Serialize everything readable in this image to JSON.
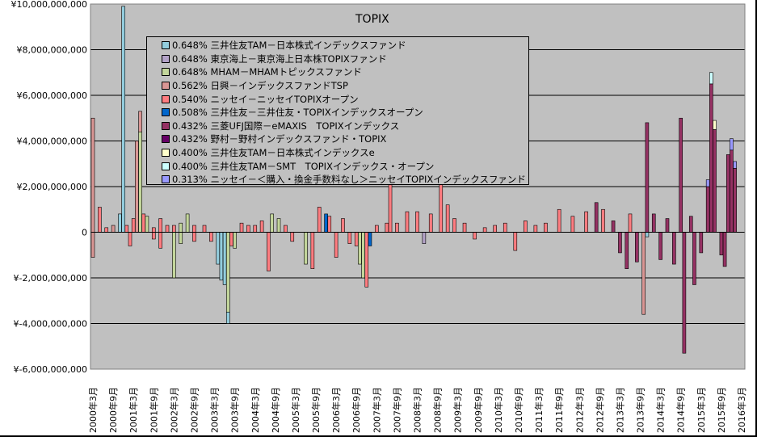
{
  "chart_data": {
    "type": "bar",
    "stacked": true,
    "title": "TOPIX",
    "xlabel": "",
    "ylabel": "",
    "ylim": [
      -6000000000,
      10000000000
    ],
    "yticks": [
      10000000000,
      8000000000,
      6000000000,
      4000000000,
      2000000000,
      0,
      -2000000000,
      -4000000000,
      -6000000000
    ],
    "ytick_labels": [
      "¥10,000,000,000",
      "¥8,000,000,000",
      "¥6,000,000,000",
      "¥4,000,000,000",
      "¥2,000,000,000",
      "0",
      "¥-2,000,000,000",
      "¥-4,000,000,000",
      "¥-6,000,000,000"
    ],
    "x_start": "2000-03",
    "x_end": "2016-03",
    "xtick_labels": [
      "2000年3月",
      "2000年9月",
      "2001年3月",
      "2001年9月",
      "2002年3月",
      "2002年9月",
      "2003年3月",
      "2003年9月",
      "2004年3月",
      "2004年9月",
      "2005年3月",
      "2005年9月",
      "2006年3月",
      "2006年9月",
      "2007年3月",
      "2007年9月",
      "2008年3月",
      "2008年9月",
      "2009年3月",
      "2009年9月",
      "2010年3月",
      "2010年9月",
      "2011年3月",
      "2011年9月",
      "2012年3月",
      "2012年9月",
      "2013年3月",
      "2013年9月",
      "2014年3月",
      "2014年9月",
      "2015年3月",
      "2015年9月",
      "2016年3月"
    ],
    "grid": true,
    "legend_position": "top-left",
    "value_unit": "billion yen (approx.)",
    "series": [
      {
        "name": "0.648% 三井住友TAM－日本株式インデックスファンド",
        "color": "#93cddd"
      },
      {
        "name": "0.648% 東京海上－東京海上日本株TOPIXファンド",
        "color": "#b3a2c7"
      },
      {
        "name": "0.648% MHAM－MHAMトピックスファンド",
        "color": "#c3d69b"
      },
      {
        "name": "0.562% 日興－インデックスファンドTSP",
        "color": "#d99694"
      },
      {
        "name": "0.540% ニッセイ－ニッセイTOPIXオープン",
        "color": "#ff7c80"
      },
      {
        "name": "0.508% 三井住友－三井住友・TOPIXインデックスオープン",
        "color": "#0066cc"
      },
      {
        "name": "0.432% 三菱UFJ国際－eMAXIS　TOPIXインデックス",
        "color": "#953163"
      },
      {
        "name": "0.432% 野村－野村インデックスファンド・TOPIX",
        "color": "#660066"
      },
      {
        "name": "0.400% 三井住友TAM－日本株式インデックスe",
        "color": "#ffffcc"
      },
      {
        "name": "0.400% 三井住友TAM－SMT　TOPIXインデックス・オープン",
        "color": "#ccffff"
      },
      {
        "name": "0.313% ニッセイ－＜購入・換金手数料なし＞ニッセイTOPIXインデックスファンド",
        "color": "#9999ff"
      }
    ],
    "bars": [
      [
        "2000-03",
        3,
        5.0
      ],
      [
        "2000-03",
        3,
        -1.1
      ],
      [
        "2000-05",
        4,
        1.1
      ],
      [
        "2000-07",
        4,
        0.2
      ],
      [
        "2000-09",
        3,
        0.3
      ],
      [
        "2000-11",
        0,
        0.8
      ],
      [
        "2000-12",
        0,
        9.9
      ],
      [
        "2001-01",
        4,
        0.3
      ],
      [
        "2001-02",
        4,
        -0.6
      ],
      [
        "2001-03",
        4,
        0.6
      ],
      [
        "2001-04",
        3,
        4.0
      ],
      [
        "2001-05",
        2,
        4.4
      ],
      [
        "2001-05",
        3,
        0.9
      ],
      [
        "2001-06",
        4,
        0.8
      ],
      [
        "2001-07",
        2,
        0.7
      ],
      [
        "2001-09",
        4,
        0.2
      ],
      [
        "2001-09",
        4,
        -0.3
      ],
      [
        "2001-11",
        4,
        0.6
      ],
      [
        "2001-11",
        4,
        -0.7
      ],
      [
        "2002-01",
        4,
        0.3
      ],
      [
        "2002-03",
        2,
        -2.0
      ],
      [
        "2002-03",
        4,
        0.3
      ],
      [
        "2002-05",
        2,
        0.4
      ],
      [
        "2002-05",
        2,
        -0.5
      ],
      [
        "2002-07",
        2,
        0.8
      ],
      [
        "2002-09",
        4,
        0.3
      ],
      [
        "2002-09",
        4,
        -0.4
      ],
      [
        "2002-12",
        4,
        0.3
      ],
      [
        "2003-02",
        4,
        -0.4
      ],
      [
        "2003-04",
        0,
        -1.4
      ],
      [
        "2003-05",
        0,
        -2.1
      ],
      [
        "2003-06",
        0,
        -2.3
      ],
      [
        "2003-07",
        2,
        -3.5
      ],
      [
        "2003-07",
        0,
        -0.5
      ],
      [
        "2003-08",
        4,
        -0.6
      ],
      [
        "2003-09",
        2,
        -0.7
      ],
      [
        "2003-11",
        4,
        0.4
      ],
      [
        "2004-01",
        4,
        0.3
      ],
      [
        "2004-03",
        4,
        0.3
      ],
      [
        "2004-05",
        4,
        0.5
      ],
      [
        "2004-07",
        4,
        -1.7
      ],
      [
        "2004-08",
        2,
        0.8
      ],
      [
        "2004-10",
        2,
        0.6
      ],
      [
        "2004-12",
        4,
        0.3
      ],
      [
        "2005-02",
        4,
        -0.4
      ],
      [
        "2005-06",
        2,
        -1.4
      ],
      [
        "2005-08",
        4,
        -1.6
      ],
      [
        "2005-10",
        4,
        1.1
      ],
      [
        "2005-12",
        5,
        0.8
      ],
      [
        "2006-01",
        4,
        0.7
      ],
      [
        "2006-03",
        4,
        -1.1
      ],
      [
        "2006-05",
        4,
        0.6
      ],
      [
        "2006-07",
        4,
        -0.5
      ],
      [
        "2006-09",
        4,
        -0.6
      ],
      [
        "2006-10",
        2,
        -1.4
      ],
      [
        "2006-11",
        2,
        -2.0
      ],
      [
        "2006-12",
        4,
        -2.4
      ],
      [
        "2007-01",
        5,
        -0.6
      ],
      [
        "2007-03",
        4,
        0.3
      ],
      [
        "2007-06",
        4,
        0.4
      ],
      [
        "2007-07",
        4,
        2.6
      ],
      [
        "2007-09",
        4,
        0.4
      ],
      [
        "2007-12",
        4,
        0.9
      ],
      [
        "2008-03",
        4,
        0.9
      ],
      [
        "2008-05",
        1,
        -0.5
      ],
      [
        "2008-07",
        4,
        0.8
      ],
      [
        "2008-10",
        4,
        2.1
      ],
      [
        "2008-12",
        4,
        1.2
      ],
      [
        "2009-02",
        4,
        0.6
      ],
      [
        "2009-05",
        4,
        0.4
      ],
      [
        "2009-08",
        4,
        -0.3
      ],
      [
        "2009-11",
        4,
        0.2
      ],
      [
        "2010-02",
        4,
        0.3
      ],
      [
        "2010-05",
        4,
        0.4
      ],
      [
        "2010-08",
        4,
        -0.8
      ],
      [
        "2010-11",
        4,
        0.5
      ],
      [
        "2011-02",
        4,
        0.3
      ],
      [
        "2011-05",
        4,
        0.4
      ],
      [
        "2011-09",
        4,
        1.0
      ],
      [
        "2012-01",
        4,
        0.7
      ],
      [
        "2012-05",
        4,
        0.9
      ],
      [
        "2012-08",
        6,
        1.3
      ],
      [
        "2012-10",
        4,
        1.0
      ],
      [
        "2013-01",
        6,
        0.5
      ],
      [
        "2013-03",
        6,
        -0.9
      ],
      [
        "2013-05",
        6,
        -1.6
      ],
      [
        "2013-06",
        4,
        0.8
      ],
      [
        "2013-08",
        6,
        -1.3
      ],
      [
        "2013-10",
        3,
        -3.6
      ],
      [
        "2013-11",
        6,
        4.8
      ],
      [
        "2013-11",
        0,
        -0.2
      ],
      [
        "2014-01",
        6,
        0.8
      ],
      [
        "2014-03",
        6,
        -1.2
      ],
      [
        "2014-05",
        6,
        0.6
      ],
      [
        "2014-07",
        6,
        -1.4
      ],
      [
        "2014-09",
        6,
        5.0
      ],
      [
        "2014-10",
        6,
        -5.3
      ],
      [
        "2014-12",
        6,
        0.7
      ],
      [
        "2015-01",
        6,
        -2.3
      ],
      [
        "2015-03",
        6,
        -0.9
      ],
      [
        "2015-05",
        6,
        2.0
      ],
      [
        "2015-05",
        10,
        0.3
      ],
      [
        "2015-06",
        6,
        6.5
      ],
      [
        "2015-06",
        9,
        0.5
      ],
      [
        "2015-07",
        6,
        4.5
      ],
      [
        "2015-07",
        8,
        0.4
      ],
      [
        "2015-09",
        6,
        -1.0
      ],
      [
        "2015-10",
        6,
        -1.5
      ],
      [
        "2015-11",
        6,
        3.4
      ],
      [
        "2015-12",
        6,
        3.6
      ],
      [
        "2015-12",
        10,
        0.5
      ],
      [
        "2016-01",
        6,
        2.8
      ],
      [
        "2016-01",
        10,
        0.3
      ]
    ]
  }
}
